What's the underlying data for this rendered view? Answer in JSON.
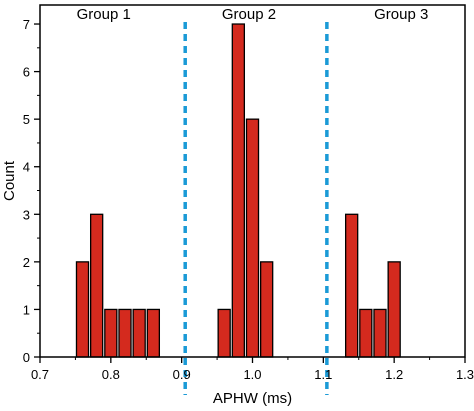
{
  "chart_data": {
    "type": "bar",
    "xlabel": "APHW (ms)",
    "ylabel": "Count",
    "xlim": [
      0.7,
      1.3
    ],
    "ylim": [
      0,
      7.4
    ],
    "bin_width": 0.02,
    "x_ticks": [
      "0.7",
      "0.8",
      "0.9",
      "1.0",
      "1.1",
      "1.2",
      "1.3"
    ],
    "y_ticks": [
      "0",
      "1",
      "2",
      "3",
      "4",
      "5",
      "6",
      "7"
    ],
    "bins": [
      {
        "x": 0.76,
        "count": 2
      },
      {
        "x": 0.78,
        "count": 3
      },
      {
        "x": 0.8,
        "count": 1
      },
      {
        "x": 0.82,
        "count": 1
      },
      {
        "x": 0.84,
        "count": 1
      },
      {
        "x": 0.86,
        "count": 1
      },
      {
        "x": 0.96,
        "count": 1
      },
      {
        "x": 0.98,
        "count": 7
      },
      {
        "x": 1.0,
        "count": 5
      },
      {
        "x": 1.02,
        "count": 2
      },
      {
        "x": 1.14,
        "count": 3
      },
      {
        "x": 1.16,
        "count": 1
      },
      {
        "x": 1.18,
        "count": 1
      },
      {
        "x": 1.2,
        "count": 2
      }
    ],
    "dividers": [
      0.905,
      1.105
    ],
    "groups": [
      {
        "label": "Group 1",
        "x": 0.79
      },
      {
        "label": "Group 2",
        "x": 0.995
      },
      {
        "label": "Group 3",
        "x": 1.21
      }
    ],
    "colors": {
      "bar_fill": "#d42a1e",
      "bar_stroke": "#000000",
      "divider": "#1a9ad6"
    }
  }
}
